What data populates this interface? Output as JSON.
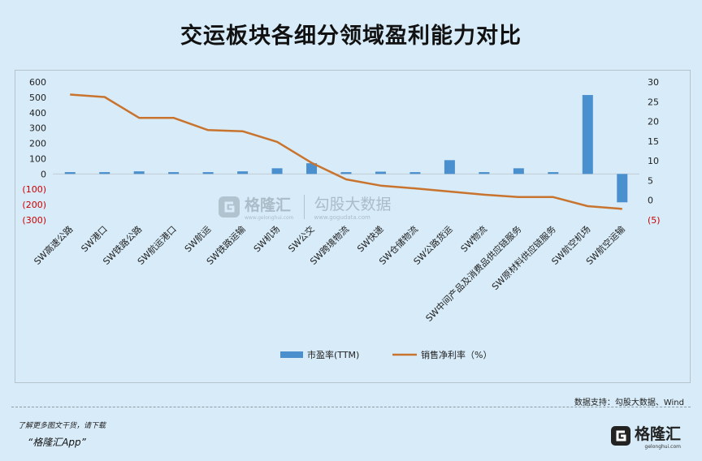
{
  "header": {
    "title": "交运板块各细分领域盈利能力对比"
  },
  "watermark": {
    "brand": "格隆汇",
    "brand_sub": "www.gelonghui.com",
    "brand2": "勾股大数据",
    "brand2_sub": "www.gogudata.com"
  },
  "footer": {
    "source": "数据支持：勾股大数据、Wind",
    "promo_line1": "了解更多图文干货，请下载",
    "promo_line2": "“格隆汇App”",
    "brand": "格隆汇",
    "brand_sub": "gelonghui.com"
  },
  "colors": {
    "bar": "#4a90cf",
    "line": "#c9742e",
    "negative_tick": "#cc0000",
    "background": "#d7ebf8"
  },
  "chart_data": {
    "type": "bar",
    "categories": [
      "SW高速公路",
      "SW港口",
      "SW铁路公路",
      "SW航运港口",
      "SW航运",
      "SW铁路运输",
      "SW机场",
      "SW公交",
      "SW跨境物流",
      "SW快递",
      "SW仓储物流",
      "SW公路货运",
      "SW物流",
      "SW中间产品及消费品供应链服务",
      "SW原材料供应链服务",
      "SW航空机场",
      "SW航空运输"
    ],
    "series": [
      {
        "name": "市盈率(TTM)",
        "type": "bar",
        "axis": "left",
        "values": [
          12,
          12,
          17,
          12,
          12,
          17,
          37,
          70,
          12,
          15,
          12,
          90,
          12,
          37,
          12,
          515,
          -185
        ]
      },
      {
        "name": "销售净利率（%）",
        "type": "line",
        "axis": "right",
        "values": [
          26.8,
          26.2,
          20.9,
          20.9,
          17.8,
          17.5,
          14.8,
          9.5,
          5.3,
          3.7,
          3.0,
          2.2,
          1.4,
          0.8,
          0.8,
          -1.5,
          -2.2
        ]
      }
    ],
    "y_left": {
      "range": [
        -300,
        600
      ],
      "ticks": [
        600,
        500,
        400,
        300,
        200,
        100,
        0,
        -100,
        -200,
        -300
      ],
      "tick_labels": [
        "600",
        "500",
        "400",
        "300",
        "200",
        "100",
        "0",
        "(100)",
        "(200)",
        "(300)"
      ]
    },
    "y_right": {
      "range": [
        -5,
        30
      ],
      "ticks": [
        30,
        25,
        20,
        15,
        10,
        5,
        0,
        -5
      ],
      "tick_labels": [
        "30",
        "25",
        "20",
        "15",
        "10",
        "5",
        "0",
        "(5)"
      ]
    },
    "grid": false,
    "legend": "bottom-center"
  }
}
